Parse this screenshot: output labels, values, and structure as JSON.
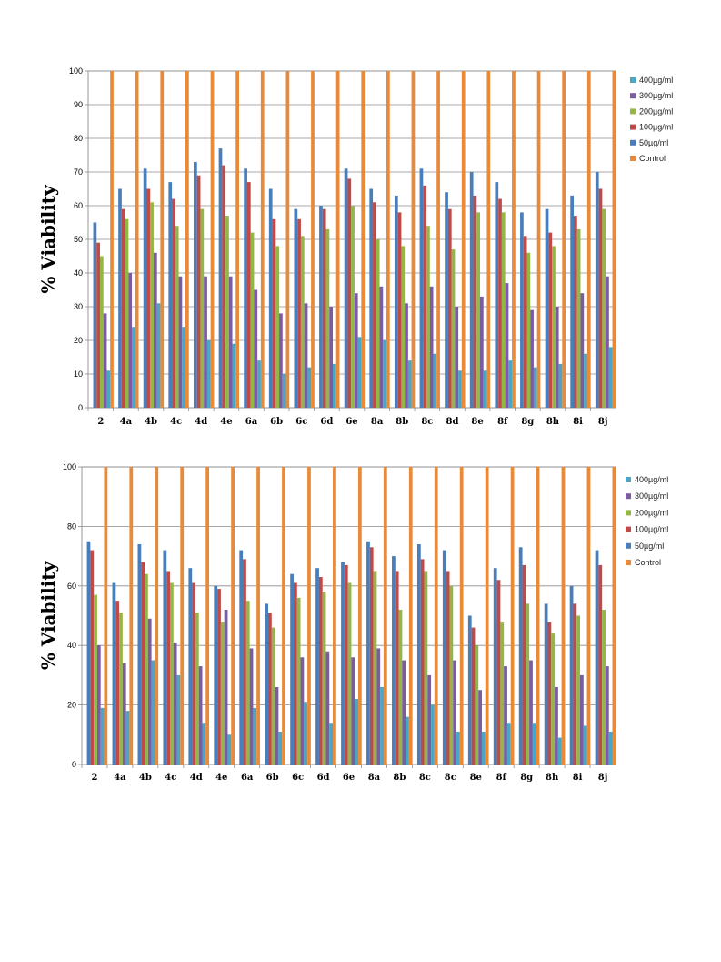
{
  "colors": {
    "400µg/ml": "#4aa6c4",
    "300µg/ml": "#7b5ca3",
    "200µg/ml": "#94b647",
    "100µg/ml": "#be4b48",
    "50µg/ml": "#4a7ebb",
    "Control": "#e88a38"
  },
  "chart_data": [
    {
      "type": "bar",
      "ylabel": "% Viability",
      "ylim": [
        0,
        100
      ],
      "yticks": [
        0,
        10,
        20,
        30,
        40,
        50,
        60,
        70,
        80,
        90,
        100
      ],
      "grid": true,
      "legend_position": "right",
      "categories": [
        "2",
        "4a",
        "4b",
        "4c",
        "4d",
        "4e",
        "6a",
        "6b",
        "6c",
        "6d",
        "6e",
        "8a",
        "8b",
        "8c",
        "8d",
        "8e",
        "8f",
        "8g",
        "8h",
        "8i",
        "8j"
      ],
      "series": [
        {
          "name": "50µg/ml",
          "values": [
            55,
            65,
            71,
            67,
            73,
            77,
            71,
            65,
            59,
            60,
            71,
            65,
            63,
            71,
            64,
            70,
            67,
            58,
            59,
            63,
            70
          ]
        },
        {
          "name": "100µg/ml",
          "values": [
            49,
            59,
            65,
            62,
            69,
            72,
            67,
            56,
            56,
            59,
            68,
            61,
            58,
            66,
            59,
            63,
            62,
            51,
            52,
            57,
            65
          ]
        },
        {
          "name": "200µg/ml",
          "values": [
            45,
            56,
            61,
            54,
            59,
            57,
            52,
            48,
            51,
            53,
            60,
            50,
            48,
            54,
            47,
            58,
            58,
            46,
            48,
            53,
            59
          ]
        },
        {
          "name": "300µg/ml",
          "values": [
            28,
            40,
            46,
            39,
            39,
            39,
            35,
            28,
            31,
            30,
            34,
            36,
            31,
            36,
            30,
            33,
            37,
            29,
            30,
            34,
            39
          ]
        },
        {
          "name": "400µg/ml",
          "values": [
            11,
            24,
            31,
            24,
            20,
            19,
            14,
            10,
            12,
            13,
            21,
            20,
            14,
            16,
            11,
            11,
            14,
            12,
            13,
            16,
            18
          ]
        },
        {
          "name": "Control",
          "values": [
            100,
            100,
            100,
            100,
            100,
            100,
            100,
            100,
            100,
            100,
            100,
            100,
            100,
            100,
            100,
            100,
            100,
            100,
            100,
            100,
            100
          ]
        }
      ],
      "legend": [
        "400µg/ml",
        "300µg/ml",
        "200µg/ml",
        "100µg/ml",
        "50µg/ml",
        "Control"
      ]
    },
    {
      "type": "bar",
      "ylabel": "% Viability",
      "ylim": [
        0,
        100
      ],
      "yticks": [
        0,
        20,
        40,
        60,
        80,
        100
      ],
      "grid": true,
      "legend_position": "right",
      "categories": [
        "2",
        "4a",
        "4b",
        "4c",
        "4d",
        "4e",
        "6a",
        "6b",
        "6c",
        "6d",
        "6e",
        "8a",
        "8b",
        "8c",
        "8c",
        "8e",
        "8f",
        "8g",
        "8h",
        "8i",
        "8j"
      ],
      "series": [
        {
          "name": "50µg/ml",
          "values": [
            75,
            61,
            74,
            72,
            66,
            60,
            72,
            54,
            64,
            66,
            68,
            75,
            70,
            74,
            72,
            50,
            66,
            73,
            54,
            60,
            72
          ]
        },
        {
          "name": "100µg/ml",
          "values": [
            72,
            55,
            68,
            65,
            61,
            59,
            69,
            51,
            61,
            63,
            67,
            73,
            65,
            69,
            65,
            46,
            62,
            67,
            48,
            54,
            67
          ]
        },
        {
          "name": "200µg/ml",
          "values": [
            57,
            51,
            64,
            61,
            51,
            48,
            55,
            46,
            56,
            58,
            61,
            65,
            52,
            65,
            60,
            40,
            48,
            54,
            44,
            50,
            52
          ]
        },
        {
          "name": "300µg/ml",
          "values": [
            40,
            34,
            49,
            41,
            33,
            52,
            39,
            26,
            36,
            38,
            36,
            39,
            35,
            30,
            35,
            25,
            33,
            35,
            26,
            30,
            33
          ]
        },
        {
          "name": "400µg/ml",
          "values": [
            19,
            18,
            35,
            30,
            14,
            10,
            19,
            11,
            21,
            14,
            22,
            26,
            16,
            20,
            11,
            11,
            14,
            14,
            9,
            13,
            11
          ]
        },
        {
          "name": "Control",
          "values": [
            100,
            100,
            100,
            100,
            100,
            100,
            100,
            100,
            100,
            100,
            100,
            100,
            100,
            100,
            100,
            100,
            100,
            100,
            100,
            100,
            100
          ]
        }
      ],
      "legend": [
        "400µg/ml",
        "300µg/ml",
        "200µg/ml",
        "100µg/ml",
        "50µg/ml",
        "Control"
      ]
    }
  ]
}
